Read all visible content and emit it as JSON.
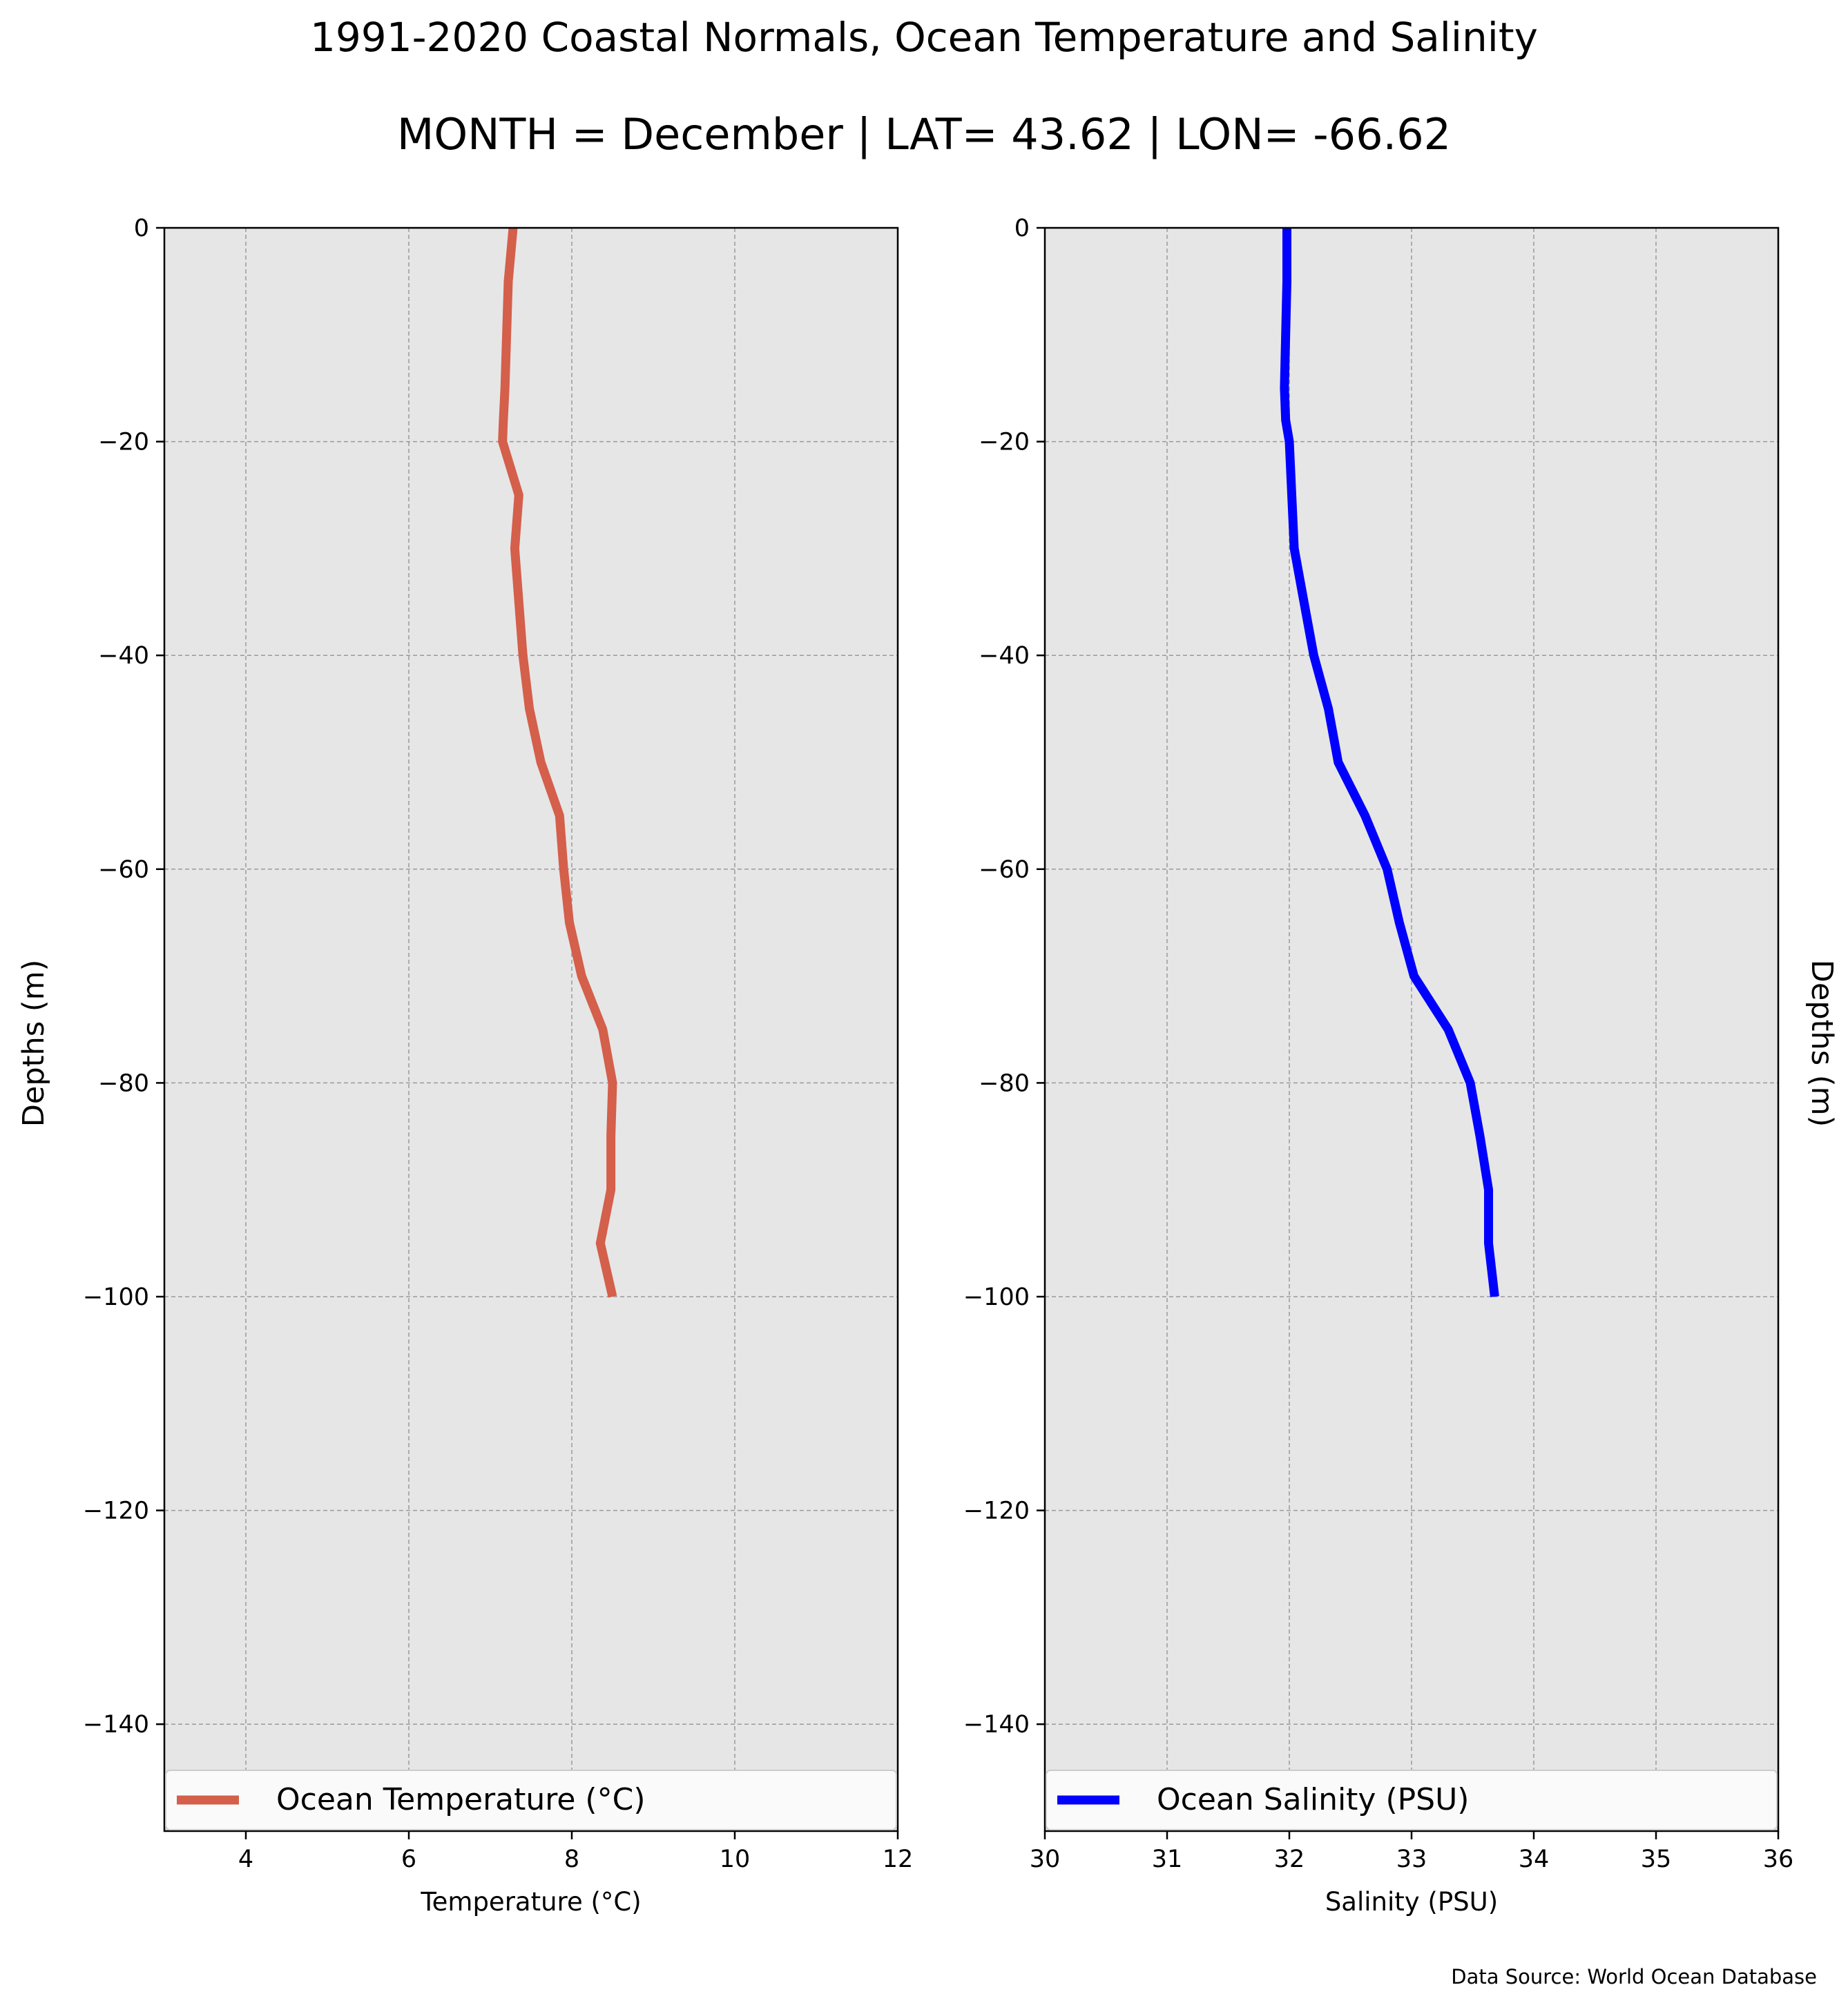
{
  "title": "1991-2020 Coastal Normals, Ocean Temperature and Salinity",
  "subtitle": "MONTH = December | LAT= 43.62 | LON= -66.62",
  "source": "Data Source: World Ocean Database",
  "chart_data": [
    {
      "type": "line",
      "xlabel": "Temperature (°C)",
      "ylabel": "Depths (m)",
      "xlim": [
        3,
        12
      ],
      "ylim": [
        -150,
        0
      ],
      "xticks": [
        4,
        6,
        8,
        10,
        12
      ],
      "yticks": [
        0,
        -20,
        -40,
        -60,
        -80,
        -100,
        -120,
        -140
      ],
      "grid": true,
      "legend_position": "bottom",
      "series": [
        {
          "name": "Ocean Temperature (°C)",
          "color": "#d45f4b",
          "x": [
            7.28,
            7.22,
            7.2,
            7.18,
            7.16,
            7.15,
            7.35,
            7.3,
            7.35,
            7.4,
            7.48,
            7.62,
            7.85,
            7.9,
            7.97,
            8.12,
            8.38,
            8.5,
            8.48,
            8.48,
            8.35,
            8.5
          ],
          "y": [
            0,
            -5,
            -10,
            -15,
            -18,
            -20,
            -25,
            -30,
            -35,
            -40,
            -45,
            -50,
            -55,
            -60,
            -65,
            -70,
            -75,
            -80,
            -85,
            -90,
            -95,
            -100
          ]
        }
      ]
    },
    {
      "type": "line",
      "xlabel": "Salinity (PSU)",
      "ylabel": "Depths (m)",
      "xlim": [
        30,
        36
      ],
      "ylim": [
        -150,
        0
      ],
      "xticks": [
        30,
        31,
        32,
        33,
        34,
        35,
        36
      ],
      "yticks": [
        0,
        -20,
        -40,
        -60,
        -80,
        -100,
        -120,
        -140
      ],
      "grid": true,
      "legend_position": "bottom",
      "series": [
        {
          "name": "Ocean Salinity (PSU)",
          "color": "#0000ff",
          "x": [
            31.98,
            31.98,
            31.97,
            31.96,
            31.97,
            32.0,
            32.04,
            32.12,
            32.2,
            32.32,
            32.4,
            32.62,
            32.8,
            32.9,
            33.02,
            33.3,
            33.48,
            33.56,
            33.63,
            33.63,
            33.68
          ],
          "y": [
            0,
            -5,
            -10,
            -15,
            -18,
            -20,
            -30,
            -35,
            -40,
            -45,
            -50,
            -55,
            -60,
            -65,
            -70,
            -75,
            -80,
            -85,
            -90,
            -95,
            -100
          ]
        }
      ]
    }
  ]
}
